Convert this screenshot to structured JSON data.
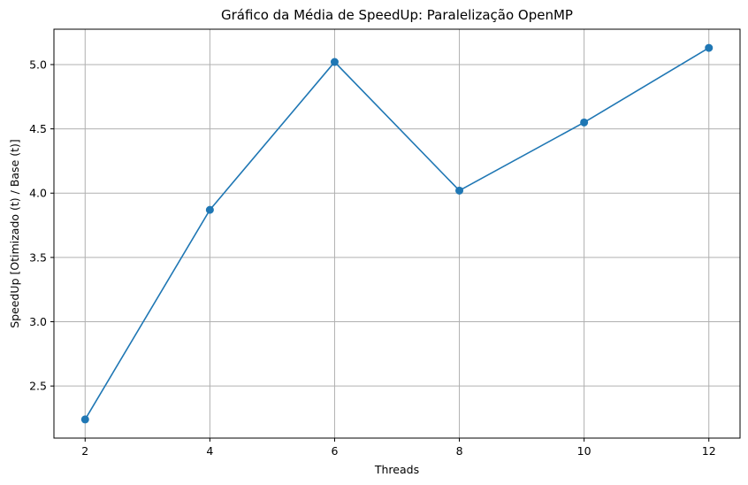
{
  "chart_data": {
    "type": "line",
    "title": "Gráfico da Média de SpeedUp: Paralelização OpenMP",
    "xlabel": "Threads",
    "ylabel": "SpeedUp [Otimizado (t) / Base (t)]",
    "x": [
      2,
      4,
      6,
      8,
      10,
      12
    ],
    "series": [
      {
        "values": [
          2.24,
          3.87,
          5.02,
          4.02,
          4.55,
          5.13
        ]
      }
    ],
    "xticks": [
      "2",
      "4",
      "6",
      "8",
      "10",
      "12"
    ],
    "yticks": [
      "2.5",
      "3.0",
      "3.5",
      "4.0",
      "4.5",
      "5.0"
    ],
    "xlim": [
      1.5,
      12.5
    ],
    "ylim": [
      2.095,
      5.275
    ],
    "grid": true,
    "marker": "circle",
    "color": "#1f77b4"
  }
}
